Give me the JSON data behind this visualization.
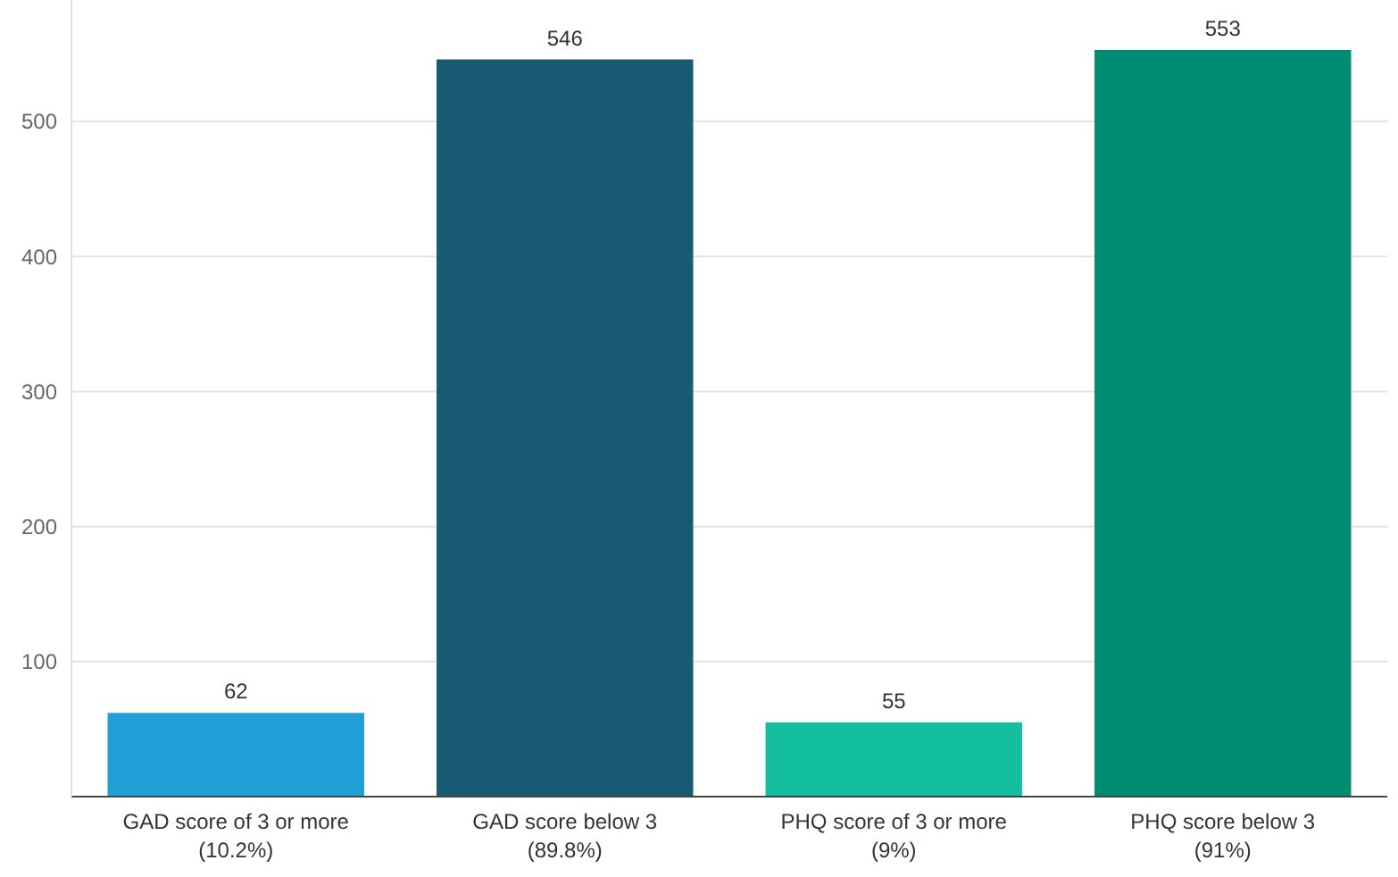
{
  "chart_data": {
    "type": "bar",
    "categories": [
      "GAD score of 3 or more\n(10.2%)",
      "GAD score below 3\n(89.8%)",
      "PHQ score of 3 or more\n(9%)",
      "PHQ score below 3\n(91%)"
    ],
    "values": [
      62,
      546,
      55,
      553
    ],
    "colors": [
      "#1f9fd6",
      "#175a72",
      "#14bf9f",
      "#008c72"
    ],
    "ylim": [
      0,
      590
    ],
    "yticks": [
      100,
      200,
      300,
      400,
      500
    ],
    "grid": "y",
    "data_labels": true
  }
}
